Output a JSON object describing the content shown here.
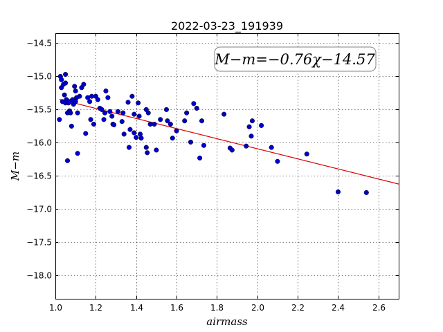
{
  "chart_data": {
    "type": "scatter",
    "title": "2022-03-23_191939",
    "xlabel": "airmass",
    "ylabel": "M−m",
    "xlim": [
      1.0,
      2.7
    ],
    "ylim": [
      -18.35,
      -14.35
    ],
    "x_ticks": [
      1.0,
      1.2,
      1.4,
      1.6,
      1.8,
      2.0,
      2.2,
      2.4,
      2.6
    ],
    "x_tick_labels": [
      "1.0",
      "1.2",
      "1.4",
      "1.6",
      "1.8",
      "2.0",
      "2.2",
      "2.4",
      "2.6"
    ],
    "y_ticks": [
      -14.5,
      -15.0,
      -15.5,
      -16.0,
      -16.5,
      -17.0,
      -17.5,
      -18.0
    ],
    "y_tick_labels": [
      "−14.5",
      "−15.0",
      "−15.5",
      "−16.0",
      "−16.5",
      "−17.0",
      "−17.5",
      "−18.0"
    ],
    "grid": true,
    "point_color": "#0000cc",
    "fit_color": "#dd0000",
    "annotation": "M−m=−0.76χ−14.57",
    "fit": {
      "slope": -0.76,
      "intercept": -14.57,
      "x_range": [
        1.02,
        2.7
      ]
    },
    "points": [
      [
        1.02,
        -15.65
      ],
      [
        1.025,
        -15.0
      ],
      [
        1.03,
        -15.05
      ],
      [
        1.03,
        -15.17
      ],
      [
        1.035,
        -15.38
      ],
      [
        1.04,
        -15.12
      ],
      [
        1.045,
        -15.28
      ],
      [
        1.05,
        -15.4
      ],
      [
        1.05,
        -15.1
      ],
      [
        1.05,
        -14.97
      ],
      [
        1.055,
        -15.35
      ],
      [
        1.06,
        -15.55
      ],
      [
        1.06,
        -16.27
      ],
      [
        1.065,
        -15.4
      ],
      [
        1.07,
        -15.52
      ],
      [
        1.07,
        -15.38
      ],
      [
        1.075,
        -15.55
      ],
      [
        1.08,
        -15.75
      ],
      [
        1.085,
        -15.35
      ],
      [
        1.09,
        -15.42
      ],
      [
        1.095,
        -15.15
      ],
      [
        1.1,
        -15.22
      ],
      [
        1.1,
        -15.38
      ],
      [
        1.105,
        -15.32
      ],
      [
        1.11,
        -15.55
      ],
      [
        1.11,
        -16.16
      ],
      [
        1.12,
        -15.3
      ],
      [
        1.13,
        -15.17
      ],
      [
        1.14,
        -15.12
      ],
      [
        1.15,
        -15.86
      ],
      [
        1.16,
        -15.32
      ],
      [
        1.17,
        -15.38
      ],
      [
        1.175,
        -15.65
      ],
      [
        1.18,
        -15.3
      ],
      [
        1.19,
        -15.72
      ],
      [
        1.2,
        -15.3
      ],
      [
        1.21,
        -15.35
      ],
      [
        1.22,
        -15.48
      ],
      [
        1.23,
        -15.5
      ],
      [
        1.24,
        -15.65
      ],
      [
        1.245,
        -15.55
      ],
      [
        1.25,
        -15.22
      ],
      [
        1.26,
        -15.32
      ],
      [
        1.27,
        -15.53
      ],
      [
        1.28,
        -15.6
      ],
      [
        1.285,
        -15.72
      ],
      [
        1.29,
        -15.73
      ],
      [
        1.31,
        -15.53
      ],
      [
        1.33,
        -15.68
      ],
      [
        1.335,
        -15.55
      ],
      [
        1.34,
        -15.87
      ],
      [
        1.36,
        -15.39
      ],
      [
        1.365,
        -16.07
      ],
      [
        1.37,
        -15.8
      ],
      [
        1.38,
        -15.3
      ],
      [
        1.39,
        -15.57
      ],
      [
        1.39,
        -15.85
      ],
      [
        1.4,
        -15.92
      ],
      [
        1.41,
        -15.4
      ],
      [
        1.415,
        -15.6
      ],
      [
        1.42,
        -15.87
      ],
      [
        1.425,
        -15.93
      ],
      [
        1.45,
        -15.5
      ],
      [
        1.45,
        -16.07
      ],
      [
        1.455,
        -16.15
      ],
      [
        1.46,
        -15.55
      ],
      [
        1.47,
        -15.72
      ],
      [
        1.49,
        -15.72
      ],
      [
        1.5,
        -16.11
      ],
      [
        1.52,
        -15.65
      ],
      [
        1.55,
        -15.5
      ],
      [
        1.555,
        -15.67
      ],
      [
        1.57,
        -15.72
      ],
      [
        1.58,
        -15.93
      ],
      [
        1.6,
        -15.82
      ],
      [
        1.64,
        -15.67
      ],
      [
        1.65,
        -15.55
      ],
      [
        1.67,
        -15.99
      ],
      [
        1.685,
        -15.41
      ],
      [
        1.7,
        -15.48
      ],
      [
        1.715,
        -16.23
      ],
      [
        1.725,
        -15.67
      ],
      [
        1.735,
        -16.04
      ],
      [
        1.835,
        -15.57
      ],
      [
        1.865,
        -16.08
      ],
      [
        1.875,
        -16.11
      ],
      [
        1.945,
        -16.05
      ],
      [
        1.96,
        -15.76
      ],
      [
        1.97,
        -15.9
      ],
      [
        1.975,
        -15.67
      ],
      [
        2.02,
        -15.74
      ],
      [
        2.07,
        -16.07
      ],
      [
        2.1,
        -16.28
      ],
      [
        2.245,
        -16.17
      ],
      [
        2.4,
        -16.74
      ],
      [
        2.54,
        -16.75
      ]
    ]
  }
}
